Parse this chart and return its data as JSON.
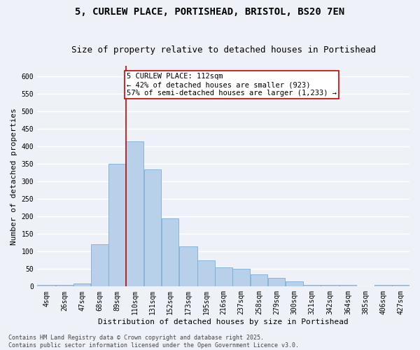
{
  "title_line1": "5, CURLEW PLACE, PORTISHEAD, BRISTOL, BS20 7EN",
  "title_line2": "Size of property relative to detached houses in Portishead",
  "xlabel": "Distribution of detached houses by size in Portishead",
  "ylabel": "Number of detached properties",
  "categories": [
    "4sqm",
    "26sqm",
    "47sqm",
    "68sqm",
    "89sqm",
    "110sqm",
    "131sqm",
    "152sqm",
    "173sqm",
    "195sqm",
    "216sqm",
    "237sqm",
    "258sqm",
    "279sqm",
    "300sqm",
    "321sqm",
    "342sqm",
    "364sqm",
    "385sqm",
    "406sqm",
    "427sqm"
  ],
  "bar_left_edges": [
    4,
    26,
    47,
    68,
    89,
    110,
    131,
    152,
    173,
    195,
    216,
    237,
    258,
    279,
    300,
    321,
    342,
    364,
    385,
    406,
    427
  ],
  "bar_widths": [
    22,
    21,
    21,
    21,
    21,
    21,
    21,
    21,
    22,
    21,
    21,
    21,
    21,
    21,
    21,
    21,
    22,
    21,
    21,
    21,
    21
  ],
  "values": [
    5,
    5,
    8,
    120,
    350,
    415,
    335,
    195,
    115,
    75,
    55,
    50,
    35,
    25,
    15,
    5,
    5,
    5,
    0,
    5,
    5
  ],
  "bar_color": "#b8d0ea",
  "bar_edge_color": "#7aadd4",
  "vline_x": 110,
  "vline_color": "#cc0000",
  "annotation_text": "5 CURLEW PLACE: 112sqm\n← 42% of detached houses are smaller (923)\n57% of semi-detached houses are larger (1,233) →",
  "annotation_box_color": "#ffffff",
  "annotation_box_edge": "#cc0000",
  "ylim": [
    0,
    630
  ],
  "yticks": [
    0,
    50,
    100,
    150,
    200,
    250,
    300,
    350,
    400,
    450,
    500,
    550,
    600
  ],
  "background_color": "#eef2f8",
  "fig_background_color": "#eef2f8",
  "grid_color": "#ffffff",
  "footnote": "Contains HM Land Registry data © Crown copyright and database right 2025.\nContains public sector information licensed under the Open Government Licence v3.0.",
  "title_fontsize": 10,
  "subtitle_fontsize": 9,
  "axis_label_fontsize": 8,
  "tick_fontsize": 7,
  "annotation_fontsize": 7.5,
  "footnote_fontsize": 6
}
